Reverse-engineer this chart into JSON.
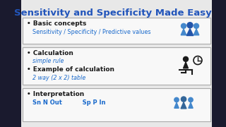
{
  "title": "Sensitivity and Specificity Made Easy",
  "title_color": "#2255BB",
  "title_fontsize": 9.5,
  "bg_color": "#E8E8E8",
  "box_bg": "#F8F8F8",
  "box_border": "#AAAAAA",
  "black_text_color": "#1A1A1A",
  "blue_text_color": "#1A6ACC",
  "section1_bullet": "Basic concepts",
  "section1_sub": "Sensitivity / Specificity / Predictive values",
  "section2_bullet1": "Calculation",
  "section2_sub1": "simple rule",
  "section2_bullet2": "Example of calculation",
  "section2_sub2": "2 way (2 x 2) table",
  "section3_bullet": "Interpretation",
  "section3_sub": "Sn N Out          Sp P In",
  "outer_bg": "#1A1A2A"
}
